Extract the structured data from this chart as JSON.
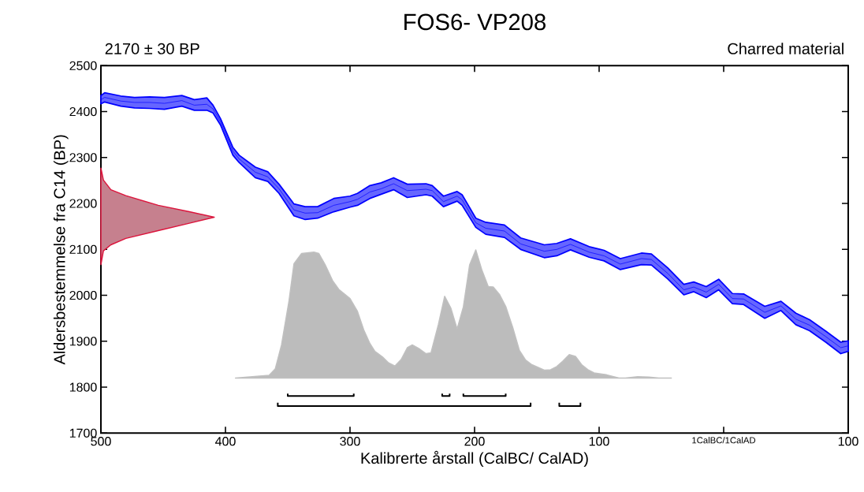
{
  "chart_data": {
    "type": "area",
    "title": "FOS6- VP208",
    "subtitle": "2170 ± 30 BP",
    "xlabel": "Kalibrerte årstall (CalBC/ CalAD)",
    "ylabel": "Aldersbestemmelse fra C14 (BP)",
    "annotations": [
      "Charred material"
    ],
    "xlim": [
      -500,
      100
    ],
    "ylim": [
      1700,
      2500
    ],
    "xticks": [
      {
        "value": -500,
        "label": "500"
      },
      {
        "value": -400,
        "label": "400"
      },
      {
        "value": -300,
        "label": "300"
      },
      {
        "value": -200,
        "label": "200"
      },
      {
        "value": -100,
        "label": "100"
      },
      {
        "value": 0,
        "label": "1CalBC/1CalAD"
      },
      {
        "value": 100,
        "label": "100"
      }
    ],
    "yticks": [
      1700,
      1800,
      1900,
      2000,
      2100,
      2200,
      2300,
      2400,
      2500
    ],
    "grid": false,
    "series": [
      {
        "color": "#c0c0c0",
        "x": [
          -392,
          -365,
          -360,
          -355,
          -349,
          -345,
          -339,
          -329,
          -325,
          -320,
          -314,
          -309,
          -300,
          -294,
          -289,
          -284,
          -280,
          -274,
          -269,
          -264,
          -259,
          -254,
          -250,
          -244,
          -239,
          -235,
          -229,
          -224,
          -219,
          -214,
          -209,
          -204,
          -199,
          -194,
          -189,
          -185,
          -180,
          -175,
          -169,
          -164,
          -159,
          -154,
          -144,
          -139,
          -134,
          -129,
          -124,
          -119,
          -114,
          -109,
          -104,
          -94,
          -84,
          -79,
          -69,
          -60,
          -52,
          -42
        ],
        "values": [
          1820,
          1826,
          1840,
          1892,
          1988,
          2069,
          2091,
          2094,
          2091,
          2067,
          2032,
          2013,
          1993,
          1965,
          1925,
          1895,
          1878,
          1866,
          1853,
          1846,
          1860,
          1886,
          1892,
          1883,
          1873,
          1875,
          1937,
          1998,
          1972,
          1927,
          1975,
          2066,
          2099,
          2054,
          2019,
          2018,
          2002,
          1976,
          1927,
          1880,
          1859,
          1849,
          1837,
          1838,
          1845,
          1857,
          1871,
          1867,
          1849,
          1838,
          1831,
          1827,
          1820,
          1820,
          1823,
          1822,
          1820,
          1820
        ]
      },
      {
        "type": "line",
        "color": "#000000",
        "x": [
          -350,
          -350,
          -297,
          -297,
          null,
          -226,
          -226,
          -220,
          -220,
          null,
          -209,
          -209,
          -175,
          -175,
          null,
          -358,
          -358,
          -155,
          -155,
          null,
          -132,
          -132,
          -115,
          -115
        ],
        "values": [
          1786,
          1781,
          1781,
          1786,
          null,
          1786,
          1781,
          1781,
          1786,
          null,
          1786,
          1781,
          1781,
          1786,
          null,
          1766,
          1759,
          1759,
          1766,
          null,
          1766,
          1759,
          1759,
          1766
        ]
      },
      {
        "color": "#dc143c",
        "x": [
          -500,
          -498,
          -492,
          -480,
          -454,
          -429,
          -409,
          -429,
          -454,
          -480,
          -492,
          -498,
          -500
        ],
        "values": [
          2277,
          2251,
          2230,
          2217,
          2196,
          2182,
          2170,
          2157,
          2141,
          2124,
          2110,
          2097,
          2067
        ]
      },
      {
        "type": "line",
        "color": "#0000ff",
        "x": [
          -500,
          -497,
          -484,
          -473,
          -461,
          -449,
          -435,
          -425,
          -415,
          -410,
          -404,
          -394,
          -389,
          -376,
          -366,
          -357,
          -345,
          -336,
          -326,
          -313,
          -300,
          -294,
          -284,
          -275,
          -265,
          -254,
          -239,
          -234,
          -225,
          -214,
          -210,
          -199,
          -191,
          -176,
          -163,
          -144,
          -134,
          -123,
          -108,
          -96,
          -83,
          -66,
          -58,
          -45,
          -32,
          -24,
          -14,
          -4,
          7,
          16,
          33,
          46,
          58,
          69,
          82,
          94,
          100
        ],
        "values": [
          2426,
          2431,
          2423,
          2420,
          2420,
          2418,
          2424,
          2414,
          2416,
          2406,
          2378,
          2314,
          2297,
          2268,
          2258,
          2232,
          2186,
          2179,
          2180,
          2196,
          2204,
          2209,
          2225,
          2232,
          2243,
          2228,
          2231,
          2228,
          2204,
          2216,
          2208,
          2158,
          2146,
          2140,
          2112,
          2096,
          2100,
          2111,
          2094,
          2086,
          2068,
          2080,
          2078,
          2048,
          2012,
          2018,
          2007,
          2024,
          1993,
          1992,
          1963,
          1977,
          1948,
          1935,
          1910,
          1886,
          1890
        ],
        "upper": [
          2435,
          2441,
          2434,
          2431,
          2432,
          2431,
          2435,
          2426,
          2430,
          2414,
          2385,
          2322,
          2305,
          2279,
          2269,
          2242,
          2199,
          2193,
          2193,
          2211,
          2216,
          2222,
          2239,
          2245,
          2256,
          2242,
          2243,
          2239,
          2216,
          2226,
          2219,
          2168,
          2159,
          2153,
          2125,
          2110,
          2113,
          2123,
          2106,
          2098,
          2080,
          2092,
          2090,
          2060,
          2024,
          2029,
          2019,
          2035,
          2004,
          2003,
          1976,
          1987,
          1961,
          1947,
          1922,
          1898,
          1901
        ],
        "lower": [
          2417,
          2421,
          2412,
          2408,
          2407,
          2405,
          2412,
          2403,
          2403,
          2397,
          2371,
          2305,
          2289,
          2256,
          2248,
          2222,
          2173,
          2165,
          2168,
          2182,
          2192,
          2196,
          2211,
          2220,
          2230,
          2213,
          2219,
          2216,
          2193,
          2205,
          2196,
          2148,
          2133,
          2126,
          2100,
          2082,
          2086,
          2099,
          2083,
          2075,
          2056,
          2067,
          2066,
          2036,
          2001,
          2008,
          1995,
          2012,
          1982,
          1980,
          1950,
          1967,
          1936,
          1923,
          1898,
          1873,
          1878
        ]
      }
    ]
  }
}
